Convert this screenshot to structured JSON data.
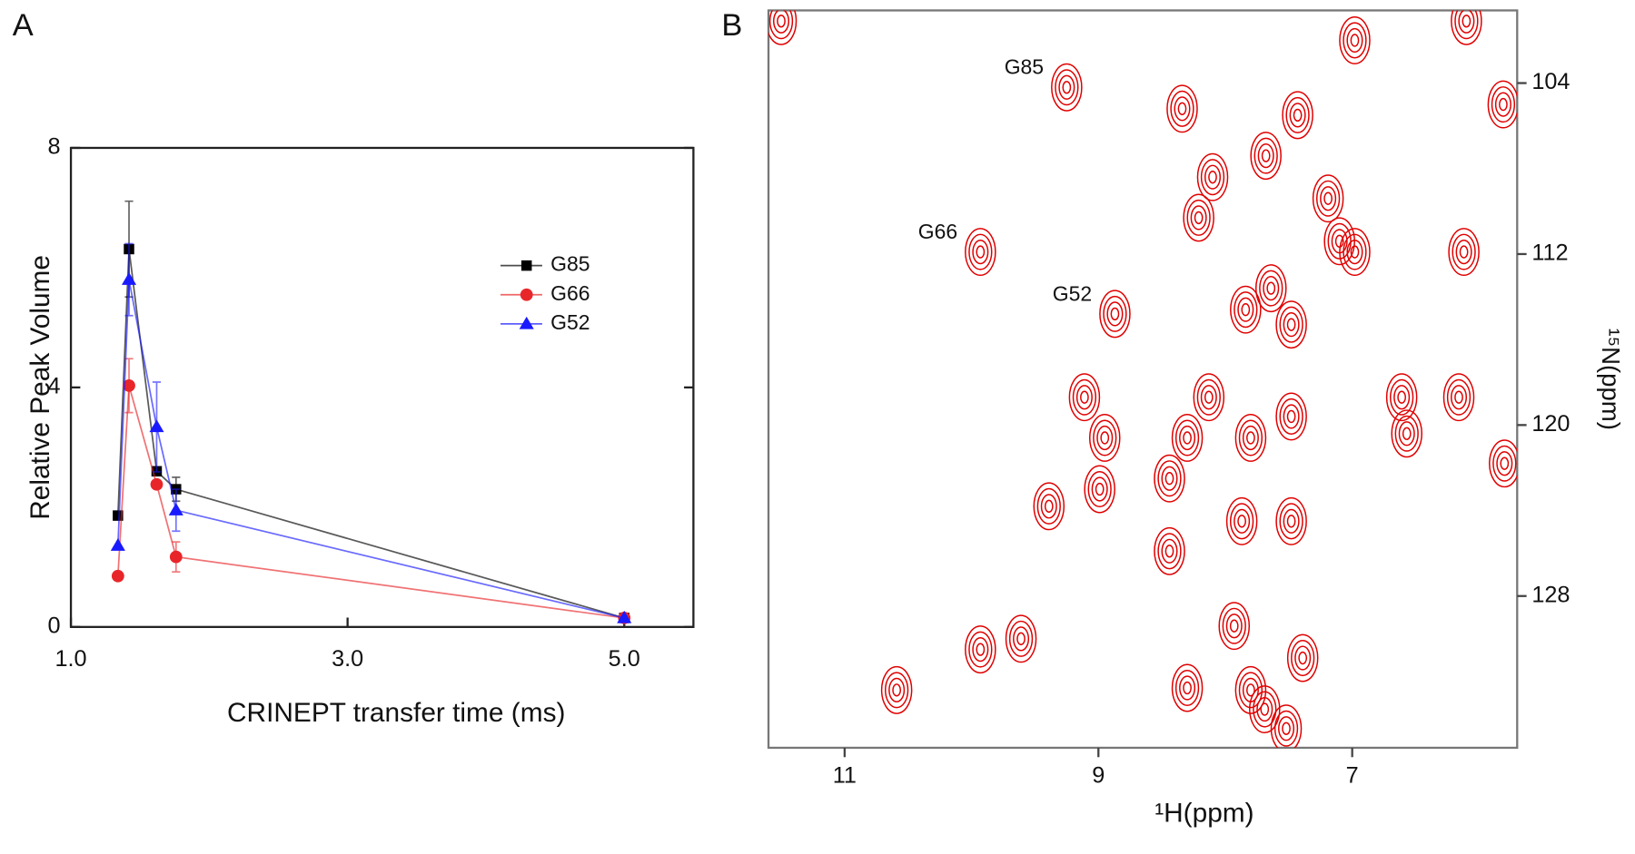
{
  "chart_data": [
    {
      "type": "line",
      "panel_label": "A",
      "x_label": "CRINEPT transfer time (ms)",
      "y_label": "Relative Peak Volume",
      "xlim": [
        1.0,
        5.5
      ],
      "ylim": [
        0,
        8
      ],
      "xticks": [
        {
          "value": 1.0,
          "label": "1.0"
        },
        {
          "value": 3.0,
          "label": "3.0"
        },
        {
          "value": 5.0,
          "label": "5.0"
        }
      ],
      "yticks": [
        0,
        4,
        8
      ],
      "legend": "upper right",
      "series": [
        {
          "name": "G85",
          "color": "#000000",
          "marker": "square",
          "x": [
            1.34,
            1.42,
            1.62,
            1.76,
            5.0
          ],
          "values": [
            1.86,
            6.31,
            2.6,
            2.3,
            0.15
          ],
          "errors": [
            null,
            0.8,
            null,
            0.2,
            null
          ]
        },
        {
          "name": "G66",
          "color": "#e8262a",
          "marker": "circle",
          "x": [
            1.34,
            1.42,
            1.62,
            1.76,
            5.0
          ],
          "values": [
            0.85,
            4.03,
            2.38,
            1.17,
            0.15
          ],
          "errors": [
            null,
            0.45,
            null,
            0.25,
            null
          ]
        },
        {
          "name": "G52",
          "color": "#1a1aff",
          "marker": "triangle",
          "x": [
            1.34,
            1.42,
            1.62,
            1.76,
            5.0
          ],
          "values": [
            1.36,
            5.8,
            3.34,
            1.95,
            0.15
          ],
          "errors": [
            null,
            0.6,
            0.75,
            0.35,
            null
          ]
        }
      ]
    },
    {
      "type": "contour",
      "panel_label": "B",
      "x_label": "¹H(ppm)",
      "y_label": "¹⁵N(ppm)",
      "xlim": [
        11.6,
        5.7
      ],
      "ylim": [
        135.1,
        100.6
      ],
      "xticks": [
        11,
        9,
        7
      ],
      "yticks": [
        104,
        112,
        120,
        128
      ],
      "color": "#e00000",
      "x": [
        9.25,
        9.93,
        8.87,
        11.5,
        6.98,
        6.1,
        8.34,
        7.43,
        5.81,
        8.1,
        7.68,
        8.21,
        7.1,
        6.98,
        6.12,
        7.64,
        7.84,
        7.48,
        6.61,
        6.57,
        6.16,
        8.13,
        8.3,
        7.8,
        7.48,
        9.11,
        8.95,
        8.44,
        8.99,
        9.39,
        8.44,
        7.87,
        7.48,
        9.61,
        9.93,
        10.59,
        7.8,
        7.39,
        7.93,
        7.69,
        7.52,
        8.3,
        5.8,
        7.19
      ],
      "y": [
        104.2,
        111.9,
        114.8,
        101.1,
        102.0,
        101.1,
        105.2,
        105.5,
        105.0,
        108.4,
        107.4,
        110.3,
        111.4,
        111.9,
        111.9,
        113.6,
        114.6,
        115.3,
        118.7,
        120.4,
        118.7,
        118.7,
        120.6,
        120.6,
        119.6,
        118.7,
        120.6,
        122.5,
        123.0,
        123.8,
        125.9,
        124.5,
        124.5,
        130.0,
        130.5,
        132.4,
        132.4,
        130.9,
        129.4,
        133.3,
        134.2,
        132.3,
        121.8,
        109.4
      ],
      "annotations": [
        {
          "text": "G85",
          "x": 9.25,
          "y": 104.2
        },
        {
          "text": "G66",
          "x": 9.93,
          "y": 111.9
        },
        {
          "text": "G52",
          "x": 8.87,
          "y": 114.8
        }
      ]
    }
  ]
}
